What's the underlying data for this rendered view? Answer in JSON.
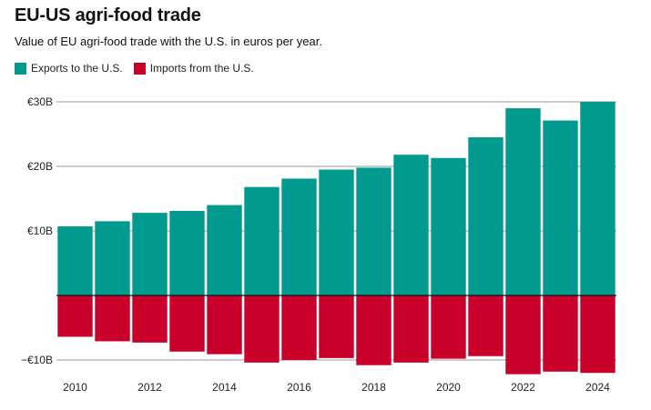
{
  "chart_data": {
    "type": "bar",
    "title": "EU-US agri-food trade",
    "subtitle": "Value of EU agri-food trade with the U.S. in euros per year.",
    "categories": [
      "2010",
      "2011",
      "2012",
      "2013",
      "2014",
      "2015",
      "2016",
      "2017",
      "2018",
      "2019",
      "2020",
      "2021",
      "2022",
      "2023",
      "2024"
    ],
    "series": [
      {
        "name": "Exports to the U.S.",
        "color": "#009a8e",
        "values": [
          10.7,
          11.5,
          12.8,
          13.1,
          14.0,
          16.8,
          18.1,
          19.5,
          19.8,
          21.8,
          21.3,
          24.5,
          29.0,
          27.1,
          30.0
        ]
      },
      {
        "name": "Imports from the U.S.",
        "color": "#c8002a",
        "values": [
          -6.4,
          -7.1,
          -7.3,
          -8.7,
          -9.1,
          -10.4,
          -10.0,
          -9.7,
          -10.8,
          -10.4,
          -9.8,
          -9.4,
          -12.2,
          -11.8,
          -12.0
        ]
      }
    ],
    "ylim": [
      -12.5,
      30
    ],
    "yticks": [
      {
        "value": 30,
        "label": "€30B"
      },
      {
        "value": 20,
        "label": "€20B"
      },
      {
        "value": 10,
        "label": "€10B"
      },
      {
        "value": -10,
        "label": "−€10B"
      }
    ],
    "xtick_labels": [
      "2010",
      "2012",
      "2014",
      "2016",
      "2018",
      "2020",
      "2022",
      "2024"
    ],
    "xlabel": "",
    "ylabel": "",
    "grid": true
  }
}
